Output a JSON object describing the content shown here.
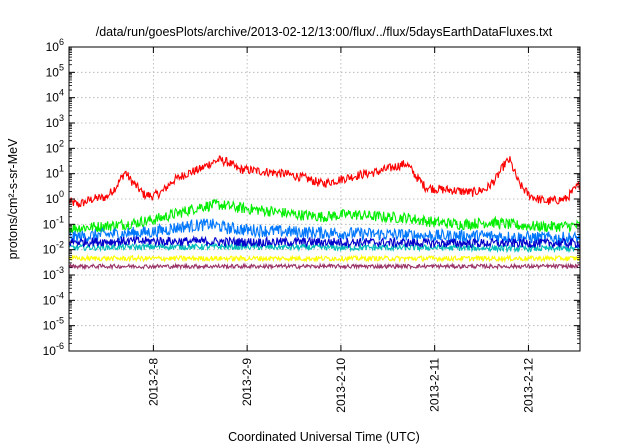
{
  "chart_data": {
    "type": "line",
    "title": "/data/run/goesPlots/archive/2013-02-12/13:00/flux/../flux/5daysEarthDataFluxes.txt",
    "xlabel": "Coordinated Universal Time (UTC)",
    "ylabel": "protons/cm²-s-sr-MeV",
    "yscale": "log",
    "xlim": [
      7.1,
      12.55
    ],
    "ylim": [
      1e-06,
      1000000.0
    ],
    "x_ticks": [
      {
        "value": 8,
        "label": "2013-2-8"
      },
      {
        "value": 9,
        "label": "2013-2-9"
      },
      {
        "value": 10,
        "label": "2013-2-10"
      },
      {
        "value": 11,
        "label": "2013-2-11"
      },
      {
        "value": 12,
        "label": "2013-2-12"
      }
    ],
    "y_ticks": [
      {
        "exp": 6,
        "base": "10",
        "sup": "6"
      },
      {
        "exp": 5,
        "base": "10",
        "sup": "5"
      },
      {
        "exp": 4,
        "base": "10",
        "sup": "4"
      },
      {
        "exp": 3,
        "base": "10",
        "sup": "3"
      },
      {
        "exp": 2,
        "base": "10",
        "sup": "2"
      },
      {
        "exp": 1,
        "base": "10",
        "sup": "1"
      },
      {
        "exp": 0,
        "base": "10",
        "sup": "0"
      },
      {
        "exp": -1,
        "base": "10",
        "sup": "-1"
      },
      {
        "exp": -2,
        "base": "10",
        "sup": "-2"
      },
      {
        "exp": -3,
        "base": "10",
        "sup": "-3"
      },
      {
        "exp": -4,
        "base": "10",
        "sup": "-4"
      },
      {
        "exp": -5,
        "base": "10",
        "sup": "-5"
      },
      {
        "exp": -6,
        "base": "10",
        "sup": "-6"
      }
    ],
    "grid": true,
    "series": [
      {
        "color": "#ff0000",
        "noise": 0.18,
        "x": [
          7.1,
          7.2,
          7.35,
          7.5,
          7.6,
          7.7,
          7.75,
          7.9,
          8.0,
          8.1,
          8.2,
          8.35,
          8.5,
          8.6,
          8.7,
          8.8,
          8.9,
          9.0,
          9.2,
          9.4,
          9.6,
          9.8,
          10.0,
          10.2,
          10.4,
          10.6,
          10.7,
          10.8,
          10.9,
          11.0,
          11.2,
          11.4,
          11.55,
          11.65,
          11.75,
          11.8,
          11.9,
          12.0,
          12.1,
          12.2,
          12.3,
          12.4,
          12.5,
          12.55
        ],
        "y": [
          0.8,
          0.6,
          1.0,
          1.2,
          3,
          12,
          6,
          1.5,
          1.3,
          2,
          5,
          10,
          15,
          25,
          35,
          28,
          15,
          14,
          12,
          10,
          7,
          4,
          6,
          9,
          12,
          20,
          25,
          8,
          3,
          2.5,
          2.2,
          1.8,
          2.5,
          6,
          25,
          35,
          4,
          1.5,
          1.0,
          0.8,
          0.9,
          1.0,
          2.5,
          4
        ]
      },
      {
        "color": "#00ee00",
        "noise": 0.22,
        "x": [
          7.1,
          7.4,
          7.7,
          8.0,
          8.3,
          8.5,
          8.7,
          8.9,
          9.2,
          9.5,
          9.8,
          10.1,
          10.4,
          10.7,
          11.0,
          11.3,
          11.6,
          11.9,
          12.2,
          12.55
        ],
        "y": [
          0.07,
          0.08,
          0.1,
          0.15,
          0.3,
          0.5,
          0.6,
          0.45,
          0.35,
          0.25,
          0.2,
          0.25,
          0.2,
          0.18,
          0.12,
          0.1,
          0.12,
          0.09,
          0.08,
          0.09
        ]
      },
      {
        "color": "#0077ff",
        "noise": 0.25,
        "x": [
          7.1,
          7.5,
          8.0,
          8.3,
          8.6,
          8.8,
          9.0,
          9.5,
          10.0,
          10.5,
          11.0,
          11.5,
          12.0,
          12.55
        ],
        "y": [
          0.03,
          0.04,
          0.05,
          0.08,
          0.1,
          0.07,
          0.06,
          0.05,
          0.045,
          0.04,
          0.035,
          0.035,
          0.03,
          0.028
        ]
      },
      {
        "color": "#00bbbb",
        "noise": 0.12,
        "x": [
          7.1,
          8.0,
          9.0,
          10.0,
          11.0,
          12.0,
          12.55
        ],
        "y": [
          0.012,
          0.013,
          0.013,
          0.012,
          0.012,
          0.011,
          0.011
        ]
      },
      {
        "color": "#0000cc",
        "noise": 0.18,
        "x": [
          7.1,
          8.0,
          9.0,
          10.0,
          11.0,
          12.0,
          12.55
        ],
        "y": [
          0.02,
          0.022,
          0.02,
          0.02,
          0.018,
          0.018,
          0.018
        ]
      },
      {
        "color": "#ffff00",
        "noise": 0.1,
        "x": [
          7.1,
          8.0,
          9.0,
          10.0,
          11.0,
          12.0,
          12.55
        ],
        "y": [
          0.0045,
          0.0045,
          0.0045,
          0.0045,
          0.0045,
          0.0045,
          0.0045
        ]
      },
      {
        "color": "#993366",
        "noise": 0.08,
        "x": [
          7.1,
          8.0,
          9.0,
          10.0,
          11.0,
          12.0,
          12.55
        ],
        "y": [
          0.0022,
          0.0022,
          0.0022,
          0.0022,
          0.0022,
          0.0022,
          0.0022
        ]
      }
    ]
  }
}
